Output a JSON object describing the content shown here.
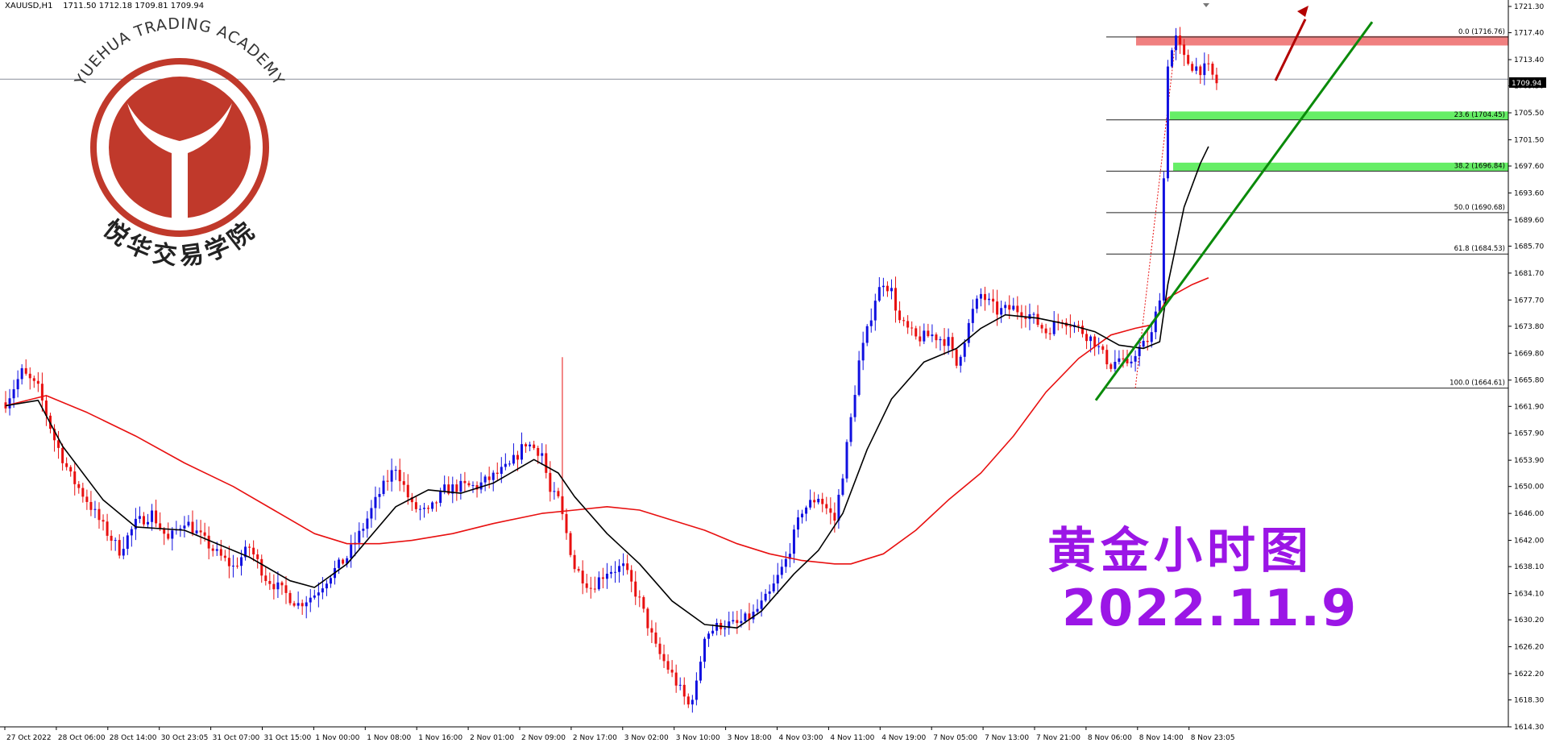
{
  "header": {
    "symbol_label": "XAUUSD,H1",
    "ohlc": "1711.50 1712.18 1709.81 1709.94"
  },
  "logo": {
    "text_top": "YUEHUA TRADING ACADEMY",
    "text_bottom": "悦华交易学院",
    "color": "#c0392b"
  },
  "overlay": {
    "title": "黄金小时图",
    "date": "2022.11.9",
    "color": "#9b16e6"
  },
  "chart_data": {
    "type": "candlestick",
    "instrument": "XAUUSD",
    "timeframe": "H1",
    "y_range": [
      1614.3,
      1721.3
    ],
    "y_ticks": [
      "1721.30",
      "1717.40",
      "1713.40",
      "1709.50",
      "1705.50",
      "1701.50",
      "1697.60",
      "1693.60",
      "1689.60",
      "1685.70",
      "1681.70",
      "1677.70",
      "1673.80",
      "1669.80",
      "1665.80",
      "1661.90",
      "1657.90",
      "1653.90",
      "1650.00",
      "1646.00",
      "1642.00",
      "1638.10",
      "1634.10",
      "1630.20",
      "1626.20",
      "1622.20",
      "1618.30",
      "1614.30"
    ],
    "x_ticks": [
      "27 Oct 2022",
      "28 Oct 06:00",
      "28 Oct 14:00",
      "30 Oct 23:05",
      "31 Oct 07:00",
      "31 Oct 15:00",
      "1 Nov 00:00",
      "1 Nov 08:00",
      "1 Nov 16:00",
      "2 Nov 01:00",
      "2 Nov 09:00",
      "2 Nov 17:00",
      "3 Nov 02:00",
      "3 Nov 10:00",
      "3 Nov 18:00",
      "4 Nov 03:00",
      "4 Nov 11:00",
      "4 Nov 19:00",
      "7 Nov 05:00",
      "7 Nov 13:00",
      "7 Nov 21:00",
      "8 Nov 06:00",
      "8 Nov 14:00",
      "8 Nov 23:05"
    ],
    "current_price": "1709.94",
    "bull_color": "#1010e0",
    "bear_color": "#e81010",
    "candle_anchors": [
      [
        0,
        1662.5
      ],
      [
        4,
        1667.0
      ],
      [
        8,
        1664.5
      ],
      [
        12,
        1657.0
      ],
      [
        16,
        1651.5
      ],
      [
        20,
        1648.0
      ],
      [
        24,
        1644.0
      ],
      [
        28,
        1640.5
      ],
      [
        32,
        1644.5
      ],
      [
        36,
        1646.0
      ],
      [
        40,
        1642.0
      ],
      [
        44,
        1645.0
      ],
      [
        48,
        1642.5
      ],
      [
        52,
        1640.0
      ],
      [
        56,
        1638.0
      ],
      [
        60,
        1641.0
      ],
      [
        64,
        1636.5
      ],
      [
        68,
        1634.5
      ],
      [
        72,
        1632.5
      ],
      [
        76,
        1634.0
      ],
      [
        80,
        1637.0
      ],
      [
        84,
        1639.5
      ],
      [
        88,
        1644.0
      ],
      [
        92,
        1649.0
      ],
      [
        96,
        1653.0
      ],
      [
        100,
        1647.0
      ],
      [
        104,
        1646.0
      ],
      [
        108,
        1649.5
      ],
      [
        112,
        1650.0
      ],
      [
        116,
        1650.0
      ],
      [
        120,
        1651.5
      ],
      [
        124,
        1653.0
      ],
      [
        128,
        1656.5
      ],
      [
        132,
        1655.0
      ],
      [
        134,
        1649.0
      ],
      [
        136,
        1648.0
      ],
      [
        138,
        1643.0
      ],
      [
        140,
        1638.0
      ],
      [
        144,
        1635.0
      ],
      [
        148,
        1637.5
      ],
      [
        152,
        1638.0
      ],
      [
        156,
        1633.0
      ],
      [
        160,
        1626.0
      ],
      [
        164,
        1622.0
      ],
      [
        168,
        1617.5
      ],
      [
        170,
        1620.5
      ],
      [
        172,
        1628.0
      ],
      [
        176,
        1629.5
      ],
      [
        180,
        1629.5
      ],
      [
        184,
        1631.0
      ],
      [
        188,
        1634.0
      ],
      [
        192,
        1639.0
      ],
      [
        196,
        1646.5
      ],
      [
        200,
        1648.5
      ],
      [
        204,
        1645.0
      ],
      [
        206,
        1652.0
      ],
      [
        208,
        1660.0
      ],
      [
        210,
        1668.5
      ],
      [
        212,
        1673.0
      ],
      [
        214,
        1678.0
      ],
      [
        216,
        1680.5
      ],
      [
        218,
        1679.0
      ],
      [
        220,
        1674.5
      ],
      [
        224,
        1672.0
      ],
      [
        228,
        1672.5
      ],
      [
        232,
        1671.5
      ],
      [
        234,
        1668.0
      ],
      [
        236,
        1672.0
      ],
      [
        238,
        1676.0
      ],
      [
        240,
        1678.5
      ],
      [
        244,
        1676.0
      ],
      [
        248,
        1676.5
      ],
      [
        252,
        1675.5
      ],
      [
        256,
        1673.0
      ],
      [
        260,
        1675.0
      ],
      [
        264,
        1673.5
      ],
      [
        268,
        1671.5
      ],
      [
        270,
        1669.5
      ],
      [
        272,
        1668.0
      ],
      [
        274,
        1669.0
      ],
      [
        276,
        1667.5
      ],
      [
        278,
        1670.0
      ],
      [
        280,
        1671.0
      ],
      [
        282,
        1672.5
      ],
      [
        284,
        1678.5
      ],
      [
        286,
        1713.0
      ],
      [
        288,
        1716.5
      ],
      [
        290,
        1713.5
      ],
      [
        292,
        1712.5
      ],
      [
        294,
        1712.0
      ],
      [
        296,
        1712.0
      ],
      [
        298,
        1709.9
      ]
    ],
    "sma_black": [
      [
        0,
        1662.0
      ],
      [
        8,
        1662.8
      ],
      [
        14,
        1656.0
      ],
      [
        24,
        1648.0
      ],
      [
        32,
        1644.0
      ],
      [
        44,
        1643.5
      ],
      [
        52,
        1641.5
      ],
      [
        60,
        1639.5
      ],
      [
        70,
        1636.0
      ],
      [
        76,
        1635.0
      ],
      [
        84,
        1638.5
      ],
      [
        96,
        1647.0
      ],
      [
        104,
        1649.5
      ],
      [
        112,
        1649.0
      ],
      [
        120,
        1650.5
      ],
      [
        130,
        1654.0
      ],
      [
        136,
        1652.0
      ],
      [
        140,
        1648.5
      ],
      [
        148,
        1643.0
      ],
      [
        156,
        1638.5
      ],
      [
        164,
        1633.0
      ],
      [
        172,
        1629.5
      ],
      [
        180,
        1629.0
      ],
      [
        186,
        1631.5
      ],
      [
        194,
        1637.0
      ],
      [
        200,
        1640.5
      ],
      [
        206,
        1646.0
      ],
      [
        212,
        1655.5
      ],
      [
        218,
        1663.0
      ],
      [
        226,
        1668.5
      ],
      [
        234,
        1670.5
      ],
      [
        240,
        1673.5
      ],
      [
        246,
        1675.5
      ],
      [
        254,
        1675.0
      ],
      [
        262,
        1674.0
      ],
      [
        268,
        1673.0
      ],
      [
        274,
        1671.0
      ],
      [
        280,
        1670.5
      ],
      [
        284,
        1671.5
      ],
      [
        286,
        1680.0
      ],
      [
        290,
        1691.5
      ],
      [
        294,
        1698.0
      ],
      [
        296,
        1700.5
      ]
    ],
    "sma_red": [
      [
        0,
        1662.0
      ],
      [
        10,
        1663.5
      ],
      [
        20,
        1661.0
      ],
      [
        32,
        1657.5
      ],
      [
        44,
        1653.5
      ],
      [
        56,
        1650.0
      ],
      [
        66,
        1646.5
      ],
      [
        76,
        1643.0
      ],
      [
        84,
        1641.5
      ],
      [
        92,
        1641.5
      ],
      [
        100,
        1642.0
      ],
      [
        110,
        1643.0
      ],
      [
        120,
        1644.5
      ],
      [
        132,
        1646.0
      ],
      [
        140,
        1646.5
      ],
      [
        148,
        1647.0
      ],
      [
        156,
        1646.5
      ],
      [
        164,
        1645.0
      ],
      [
        172,
        1643.5
      ],
      [
        180,
        1641.5
      ],
      [
        188,
        1640.0
      ],
      [
        196,
        1639.0
      ],
      [
        204,
        1638.5
      ],
      [
        208,
        1638.5
      ],
      [
        216,
        1640.0
      ],
      [
        224,
        1643.5
      ],
      [
        232,
        1648.0
      ],
      [
        240,
        1652.0
      ],
      [
        248,
        1657.5
      ],
      [
        256,
        1664.0
      ],
      [
        264,
        1669.0
      ],
      [
        272,
        1672.5
      ],
      [
        278,
        1673.5
      ],
      [
        282,
        1674.0
      ],
      [
        286,
        1678.0
      ],
      [
        292,
        1680.0
      ],
      [
        296,
        1681.0
      ]
    ],
    "fibonacci": [
      {
        "label": "0.0 (1716.76)",
        "price": 1716.76
      },
      {
        "label": "23.6 (1704.45)",
        "price": 1704.45
      },
      {
        "label": "38.2 (1696.84)",
        "price": 1696.84
      },
      {
        "label": "50.0 (1690.68)",
        "price": 1690.68
      },
      {
        "label": "61.8 (1684.53)",
        "price": 1684.53
      },
      {
        "label": "100.0 (1664.61)",
        "price": 1664.61
      }
    ],
    "horizontal_line_price": 1710.5,
    "zones": [
      {
        "color": "#f08080",
        "from": 1715.5,
        "to": 1716.9
      },
      {
        "color": "#66ee66",
        "from": 1704.45,
        "to": 1705.7
      },
      {
        "color": "#66ee66",
        "from": 1696.84,
        "to": 1698.1
      }
    ],
    "trendline_color": "#0a8a0a",
    "arrow_color": "#b30000"
  }
}
